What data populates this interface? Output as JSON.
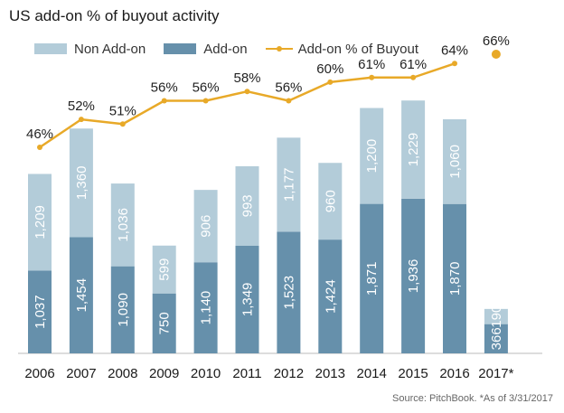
{
  "chart_data": {
    "type": "bar",
    "title": "US add-on % of buyout activity",
    "categories": [
      "2006",
      "2007",
      "2008",
      "2009",
      "2010",
      "2011",
      "2012",
      "2013",
      "2014",
      "2015",
      "2016",
      "2017*"
    ],
    "series": [
      {
        "name": "Non Add-on",
        "values": [
          1209,
          1360,
          1036,
          599,
          906,
          993,
          1177,
          960,
          1200,
          1229,
          1060,
          190
        ],
        "color": "#b3ccd9"
      },
      {
        "name": "Add-on",
        "values": [
          1037,
          1454,
          1090,
          750,
          1140,
          1349,
          1523,
          1424,
          1871,
          1936,
          1870,
          366
        ],
        "color": "#6690ab"
      },
      {
        "name": "Add-on % of Buyout",
        "type": "line",
        "values": [
          46,
          52,
          51,
          56,
          56,
          58,
          56,
          60,
          61,
          61,
          64,
          66
        ],
        "color": "#e8a928"
      }
    ],
    "value_labels": {
      "non_addon": [
        "1,209",
        "1,360",
        "1,036",
        "599",
        "906",
        "993",
        "1,177",
        "960",
        "1,200",
        "1,229",
        "1,060",
        "190"
      ],
      "addon": [
        "1,037",
        "1,454",
        "1,090",
        "750",
        "1,140",
        "1,349",
        "1,523",
        "1,424",
        "1,871",
        "1,936",
        "1,870",
        "366"
      ],
      "pct": [
        "46%",
        "52%",
        "51%",
        "56%",
        "56%",
        "58%",
        "56%",
        "60%",
        "61%",
        "61%",
        "64%",
        "66%"
      ]
    },
    "legend_position": "top-left",
    "grid": false
  },
  "source_note": "Source: PitchBook. *As of 3/31/2017"
}
